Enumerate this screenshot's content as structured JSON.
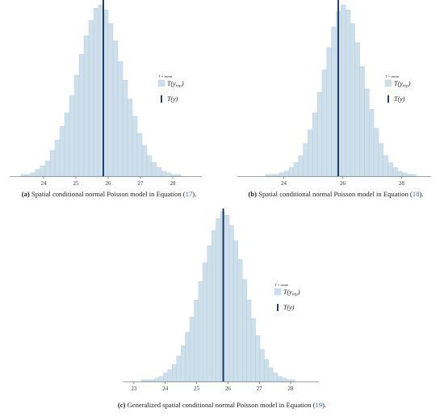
{
  "chart_data": [
    {
      "type": "histogram",
      "panel_id": "a",
      "caption_letter": "(a)",
      "caption_text": "Spatial conditional normal Poisson model in Equation (",
      "caption_ref": "17",
      "caption_end": ").",
      "xlim": [
        23.2,
        28.9
      ],
      "xticks": [
        "24",
        "25",
        "26",
        "27",
        "28"
      ],
      "tick_values": [
        24,
        25,
        26,
        27,
        28
      ],
      "bin_start": 23.3,
      "bin_width": 0.15,
      "counts": [
        1,
        1,
        2,
        4,
        6,
        9,
        15,
        21,
        29,
        37,
        47,
        59,
        71,
        82,
        91,
        98,
        100,
        97,
        89,
        79,
        67,
        56,
        45,
        35,
        25,
        18,
        12,
        8,
        5,
        3,
        2,
        1,
        1,
        0,
        0,
        0,
        0
      ],
      "observed_value": 25.85,
      "legend": {
        "title": "T = mean",
        "rep_label": "T(y",
        "rep_sub": "rep",
        "rep_close": ")",
        "obs_label": "T(y)"
      },
      "colors": {
        "bar_fill": "#cddfeb",
        "bar_stroke": "#b3cbdc",
        "line": "#0b2d5c"
      }
    },
    {
      "type": "histogram",
      "panel_id": "b",
      "caption_letter": "(b)",
      "caption_text": "Spatial conditional normal Poisson model in Equation (",
      "caption_ref": "18",
      "caption_end": ").",
      "xlim": [
        22.7,
        29.0
      ],
      "xticks": [
        "24",
        "26",
        "28"
      ],
      "tick_values": [
        24,
        26,
        28
      ],
      "bin_start": 22.9,
      "bin_width": 0.16,
      "counts": [
        0,
        0,
        0,
        1,
        1,
        1,
        2,
        3,
        5,
        8,
        12,
        19,
        27,
        37,
        49,
        62,
        75,
        87,
        96,
        100,
        97,
        89,
        78,
        64,
        51,
        39,
        28,
        19,
        12,
        8,
        5,
        3,
        2,
        1,
        1,
        0,
        0,
        0,
        0
      ],
      "observed_value": 25.85,
      "legend": {
        "title": "T = mean",
        "rep_label": "T(y",
        "rep_sub": "rep",
        "rep_close": ")",
        "obs_label": "T(y)"
      },
      "colors": {
        "bar_fill": "#cddfeb",
        "bar_stroke": "#b3cbdc",
        "line": "#0b2d5c"
      }
    },
    {
      "type": "histogram",
      "panel_id": "c",
      "caption_letter": "(c)",
      "caption_text": "Generalized spatial conditional normal Poisson model in Equation (",
      "caption_ref": "19",
      "caption_end": ").",
      "xlim": [
        22.9,
        28.9
      ],
      "xticks": [
        "23",
        "24",
        "25",
        "26",
        "27",
        "28"
      ],
      "tick_values": [
        23,
        24,
        25,
        26,
        27,
        28
      ],
      "bin_start": 23.1,
      "bin_width": 0.14,
      "counts": [
        0,
        1,
        1,
        1,
        2,
        3,
        5,
        7,
        10,
        15,
        21,
        29,
        38,
        48,
        59,
        70,
        80,
        89,
        96,
        100,
        98,
        92,
        83,
        72,
        60,
        48,
        37,
        27,
        19,
        13,
        8,
        5,
        3,
        2,
        1,
        1,
        0,
        0
      ],
      "observed_value": 25.85,
      "legend": {
        "title": "T = mean",
        "rep_label": "T(y",
        "rep_sub": "rep",
        "rep_close": ")",
        "obs_label": "T(y)"
      },
      "colors": {
        "bar_fill": "#cddfeb",
        "bar_stroke": "#b3cbdc",
        "line": "#0b2d5c"
      }
    }
  ]
}
